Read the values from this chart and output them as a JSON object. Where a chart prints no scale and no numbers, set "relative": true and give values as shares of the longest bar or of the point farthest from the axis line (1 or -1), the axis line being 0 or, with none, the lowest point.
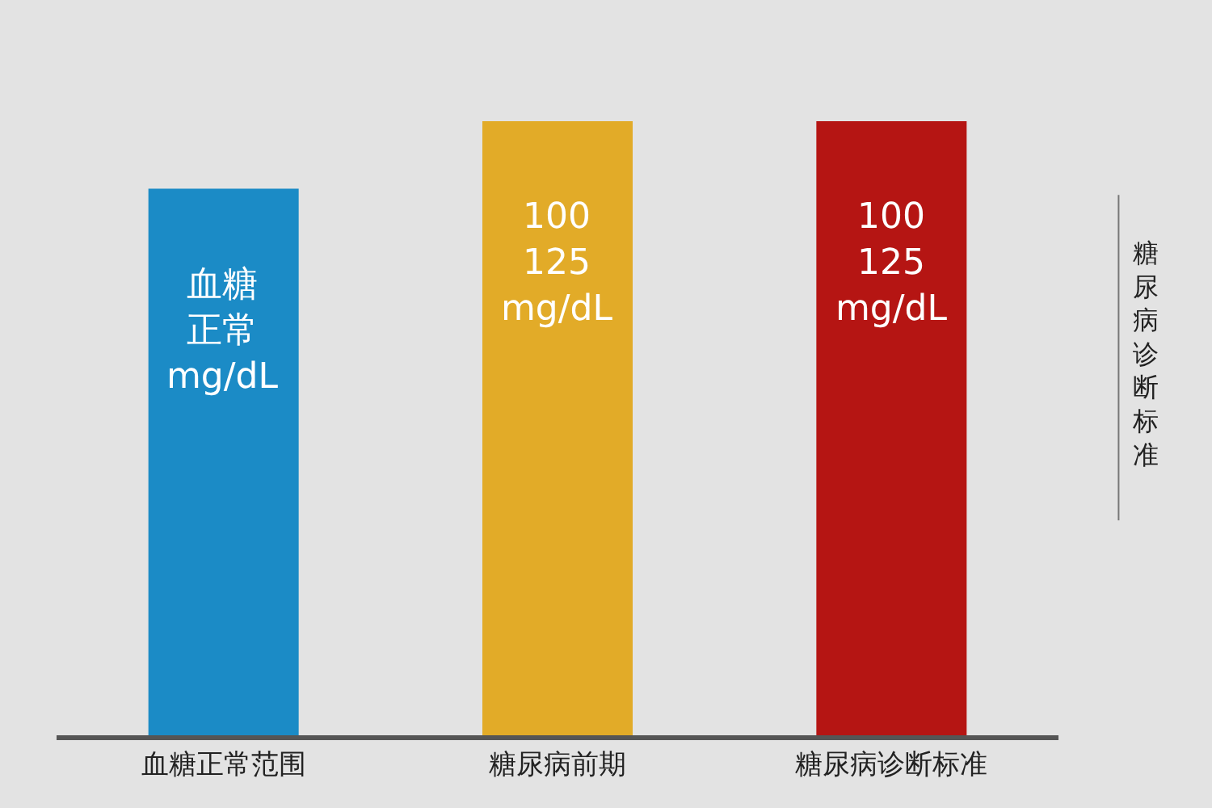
{
  "chart_data": {
    "type": "bar",
    "relative": true,
    "categories": [
      "血糖正常范围",
      "糖尿病前期",
      "糖尿病诊断标准"
    ],
    "values": [
      0.89,
      1,
      1
    ],
    "colors": [
      "#1b8bc6",
      "#e2ab28",
      "#b51513"
    ],
    "annotations": [
      {
        "text": "血糖正常\nmg/dL",
        "x": "血糖正常范围",
        "y": 0.89
      },
      {
        "text": "100\n125\nmg/dL",
        "x": "糖尿病前期",
        "y": 1
      },
      {
        "text": "100\n125\nmg/dL",
        "x": "糖尿病诊断标准",
        "y": 1
      },
      "糖尿病诊断标准"
    ],
    "grid": false,
    "legend": false
  }
}
